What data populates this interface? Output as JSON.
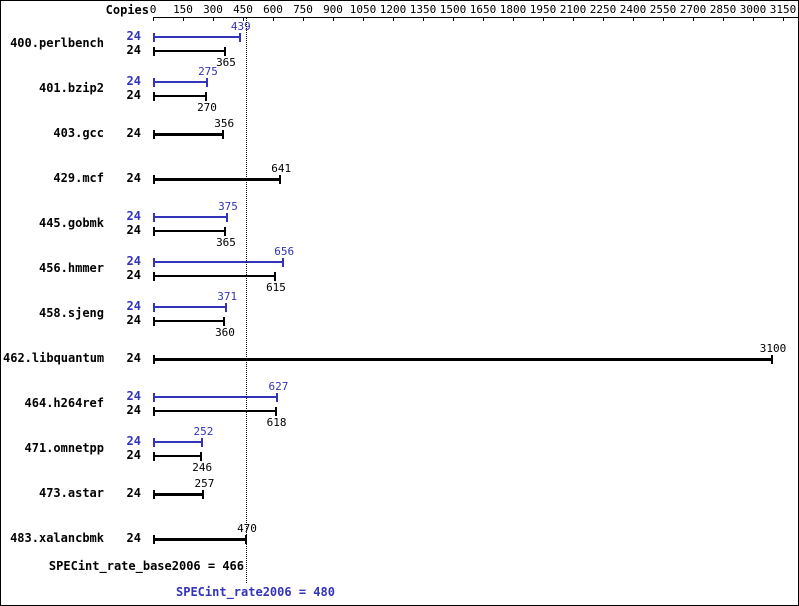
{
  "chart_data": {
    "type": "bar",
    "orientation": "horizontal",
    "copies_header": "Copies",
    "x_ticks": [
      0,
      150,
      300,
      450,
      600,
      750,
      900,
      1050,
      1200,
      1350,
      1500,
      1650,
      1800,
      1950,
      2100,
      2250,
      2400,
      2550,
      2700,
      2850,
      3000,
      3150
    ],
    "xlim": [
      0,
      3190
    ],
    "legend": {
      "peak_series": "SPECint_rate2006 (peak)",
      "base_series": "SPECint_rate_base2006 (base)"
    },
    "benchmarks": [
      {
        "name": "400.perlbench",
        "copies": 24,
        "peak": 439,
        "base": 365
      },
      {
        "name": "401.bzip2",
        "copies": 24,
        "peak": 275,
        "base": 270
      },
      {
        "name": "403.gcc",
        "copies": 24,
        "peak": null,
        "base": 356
      },
      {
        "name": "429.mcf",
        "copies": 24,
        "peak": null,
        "base": 641
      },
      {
        "name": "445.gobmk",
        "copies": 24,
        "peak": 375,
        "base": 365
      },
      {
        "name": "456.hmmer",
        "copies": 24,
        "peak": 656,
        "base": 615
      },
      {
        "name": "458.sjeng",
        "copies": 24,
        "peak": 371,
        "base": 360
      },
      {
        "name": "462.libquantum",
        "copies": 24,
        "peak": null,
        "base": 3100
      },
      {
        "name": "464.h264ref",
        "copies": 24,
        "peak": 627,
        "base": 618
      },
      {
        "name": "471.omnetpp",
        "copies": 24,
        "peak": 252,
        "base": 246
      },
      {
        "name": "473.astar",
        "copies": 24,
        "peak": null,
        "base": 257
      },
      {
        "name": "483.xalancbmk",
        "copies": 24,
        "peak": null,
        "base": 470
      }
    ],
    "reference_line": {
      "value": 466,
      "style": "dotted"
    },
    "footer": {
      "base_label": "SPECint_rate_base2006 = 466",
      "peak_label": "SPECint_rate2006 = 480",
      "base_value": 466,
      "peak_value": 480
    },
    "colors": {
      "peak": "#3333bb",
      "base": "#000000"
    }
  }
}
